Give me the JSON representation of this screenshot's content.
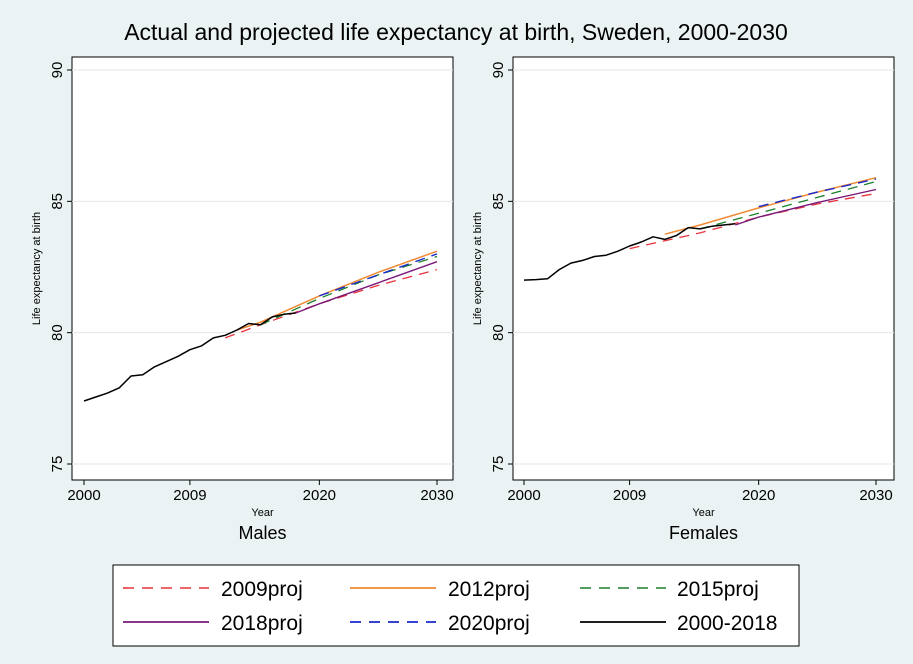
{
  "chart_data": {
    "type": "line",
    "title": "Actual and projected life expectancy at birth, Sweden, 2000-2030",
    "xlabel": "Year",
    "ylabel": "Life expectancy at birth",
    "xlim": [
      2000,
      2030
    ],
    "ylim": [
      75,
      90
    ],
    "xticks": [
      2000,
      2009,
      2020,
      2030
    ],
    "yticks": [
      75,
      80,
      85,
      90
    ],
    "legend_position": "bottom",
    "series_styles": [
      {
        "name": "2009proj",
        "color": "#e8323c",
        "dash": "10,7",
        "width": 1.3
      },
      {
        "name": "2012proj",
        "color": "#f08a33",
        "dash": "",
        "width": 1.5
      },
      {
        "name": "2015proj",
        "color": "#1a7f2b",
        "dash": "10,7",
        "width": 1.3
      },
      {
        "name": "2018proj",
        "color": "#7a1a79",
        "dash": "",
        "width": 1.4
      },
      {
        "name": "2020proj",
        "color": "#1a28cc",
        "dash": "10,7",
        "width": 1.4
      },
      {
        "name": "2000-2018",
        "color": "#000000",
        "dash": "",
        "width": 1.5
      }
    ],
    "panels": [
      {
        "title": "Males",
        "series": [
          {
            "name": "2009proj",
            "points": [
              [
                2012,
                79.8
              ],
              [
                2015,
                80.3
              ],
              [
                2020,
                81.1
              ],
              [
                2025,
                81.8
              ],
              [
                2030,
                82.4
              ]
            ]
          },
          {
            "name": "2012proj",
            "points": [
              [
                2013,
                80.1
              ],
              [
                2015,
                80.4
              ],
              [
                2020,
                81.4
              ],
              [
                2025,
                82.3
              ],
              [
                2030,
                83.1
              ]
            ]
          },
          {
            "name": "2015proj",
            "points": [
              [
                2015,
                80.3
              ],
              [
                2020,
                81.3
              ],
              [
                2025,
                82.2
              ],
              [
                2030,
                82.9
              ]
            ]
          },
          {
            "name": "2018proj",
            "points": [
              [
                2018,
                80.75
              ],
              [
                2020,
                81.1
              ],
              [
                2025,
                81.9
              ],
              [
                2030,
                82.7
              ]
            ]
          },
          {
            "name": "2020proj",
            "points": [
              [
                2020,
                81.4
              ],
              [
                2025,
                82.2
              ],
              [
                2030,
                83.0
              ]
            ]
          },
          {
            "name": "2000-2018",
            "points": [
              [
                2000,
                77.4
              ],
              [
                2001,
                77.55
              ],
              [
                2002,
                77.7
              ],
              [
                2003,
                77.9
              ],
              [
                2004,
                78.35
              ],
              [
                2005,
                78.4
              ],
              [
                2006,
                78.7
              ],
              [
                2007,
                78.9
              ],
              [
                2008,
                79.1
              ],
              [
                2009,
                79.35
              ],
              [
                2010,
                79.5
              ],
              [
                2011,
                79.8
              ],
              [
                2012,
                79.9
              ],
              [
                2013,
                80.1
              ],
              [
                2014,
                80.35
              ],
              [
                2015,
                80.3
              ],
              [
                2016,
                80.6
              ],
              [
                2017,
                80.7
              ],
              [
                2018,
                80.75
              ]
            ]
          }
        ]
      },
      {
        "title": "Females",
        "series": [
          {
            "name": "2009proj",
            "points": [
              [
                2009,
                83.2
              ],
              [
                2015,
                83.8
              ],
              [
                2020,
                84.4
              ],
              [
                2025,
                84.9
              ],
              [
                2030,
                85.3
              ]
            ]
          },
          {
            "name": "2012proj",
            "points": [
              [
                2012,
                83.75
              ],
              [
                2015,
                84.1
              ],
              [
                2020,
                84.75
              ],
              [
                2025,
                85.35
              ],
              [
                2030,
                85.9
              ]
            ]
          },
          {
            "name": "2015proj",
            "points": [
              [
                2015,
                83.95
              ],
              [
                2020,
                84.55
              ],
              [
                2025,
                85.15
              ],
              [
                2030,
                85.75
              ]
            ]
          },
          {
            "name": "2018proj",
            "points": [
              [
                2018,
                84.1
              ],
              [
                2020,
                84.4
              ],
              [
                2025,
                84.95
              ],
              [
                2030,
                85.45
              ]
            ]
          },
          {
            "name": "2020proj",
            "points": [
              [
                2020,
                84.8
              ],
              [
                2025,
                85.35
              ],
              [
                2030,
                85.85
              ]
            ]
          },
          {
            "name": "2000-2018",
            "points": [
              [
                2000,
                82.0
              ],
              [
                2001,
                82.02
              ],
              [
                2002,
                82.05
              ],
              [
                2003,
                82.4
              ],
              [
                2004,
                82.65
              ],
              [
                2005,
                82.75
              ],
              [
                2006,
                82.9
              ],
              [
                2007,
                82.95
              ],
              [
                2008,
                83.1
              ],
              [
                2009,
                83.3
              ],
              [
                2010,
                83.45
              ],
              [
                2011,
                83.65
              ],
              [
                2012,
                83.55
              ],
              [
                2013,
                83.7
              ],
              [
                2014,
                84.0
              ],
              [
                2015,
                83.95
              ],
              [
                2016,
                84.05
              ],
              [
                2017,
                84.1
              ],
              [
                2018,
                84.15
              ]
            ]
          }
        ]
      }
    ]
  }
}
